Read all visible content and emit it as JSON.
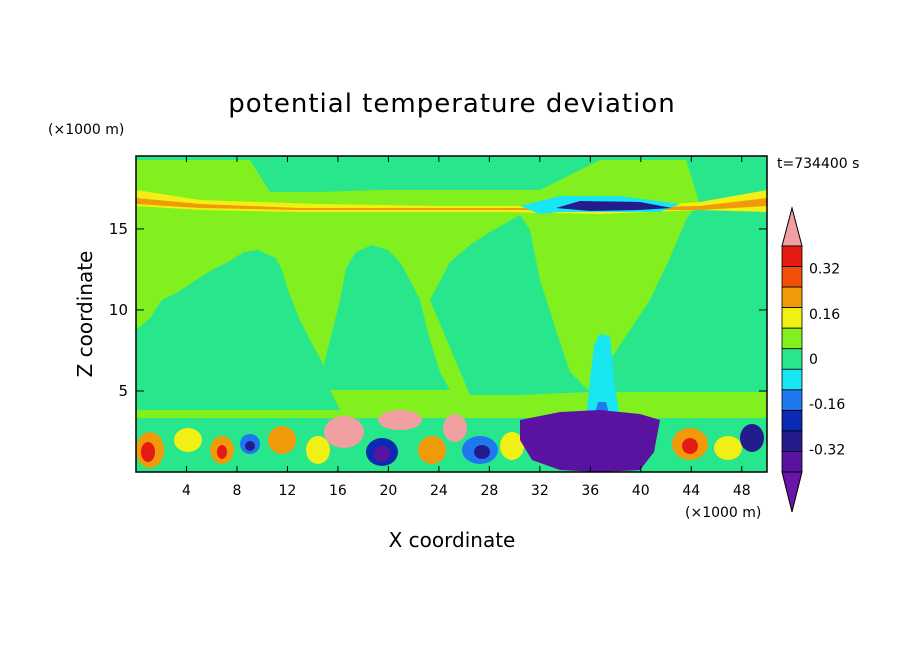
{
  "chart_data": {
    "type": "heatmap",
    "title": "potential temperature deviation",
    "xlabel": "X coordinate",
    "ylabel": "Z coordinate",
    "x_unit": "(×1000 m)",
    "y_unit": "(×1000 m)",
    "time_label": "t=734400 s",
    "xlim": [
      0,
      50
    ],
    "ylim": [
      0,
      19.5
    ],
    "xticks": [
      4,
      8,
      12,
      16,
      20,
      24,
      28,
      32,
      36,
      40,
      44,
      48
    ],
    "yticks": [
      5,
      10,
      15
    ],
    "colorbar": {
      "levels": [
        -0.4,
        -0.32,
        -0.24,
        -0.16,
        -0.08,
        0,
        0.08,
        0.16,
        0.24,
        0.32,
        0.4
      ],
      "labels": [
        "-0.32",
        "-0.16",
        "0",
        "0.16",
        "0.32"
      ],
      "label_values": [
        -0.32,
        -0.16,
        0,
        0.16,
        0.32
      ],
      "colors": [
        "#5a13a0",
        "#241c8c",
        "#0a2ab4",
        "#1e78f0",
        "#18e6f0",
        "#28e68c",
        "#82f01e",
        "#f0f014",
        "#f09a0a",
        "#f0500a",
        "#e61a14"
      ],
      "over_color": "#f0a0a0",
      "under_color": "#6a14a8"
    },
    "regions": [
      {
        "class": "background",
        "value_range": [
          0,
          0.08
        ],
        "color": "#82f01e"
      },
      {
        "class": "plumes",
        "value_range": [
          -0.08,
          0
        ],
        "color": "#28e68c",
        "x_extent": [
          0,
          50
        ],
        "z_extent": [
          4,
          19
        ]
      },
      {
        "class": "tropopause_warm_layer",
        "value_range": [
          0.16,
          0.32
        ],
        "z_extent": [
          16.5,
          17.5
        ]
      },
      {
        "class": "tropopause_cold_pool",
        "value_range": [
          -0.4,
          -0.24
        ],
        "x_extent": [
          33,
          43
        ],
        "z_extent": [
          16.6,
          17.2
        ]
      },
      {
        "class": "boundary_layer_turbulence",
        "value_range": [
          -0.4,
          0.4
        ],
        "z_extent": [
          0,
          3.5
        ]
      },
      {
        "class": "cold_column",
        "value_range": [
          -0.4,
          -0.16
        ],
        "x_extent": [
          30,
          40
        ],
        "z_extent": [
          0,
          4
        ]
      },
      {
        "class": "warm_blobs",
        "value_range": [
          0.32,
          0.45
        ],
        "x_extent": [
          11,
          27
        ],
        "z_extent": [
          1.5,
          4.5
        ]
      }
    ]
  }
}
